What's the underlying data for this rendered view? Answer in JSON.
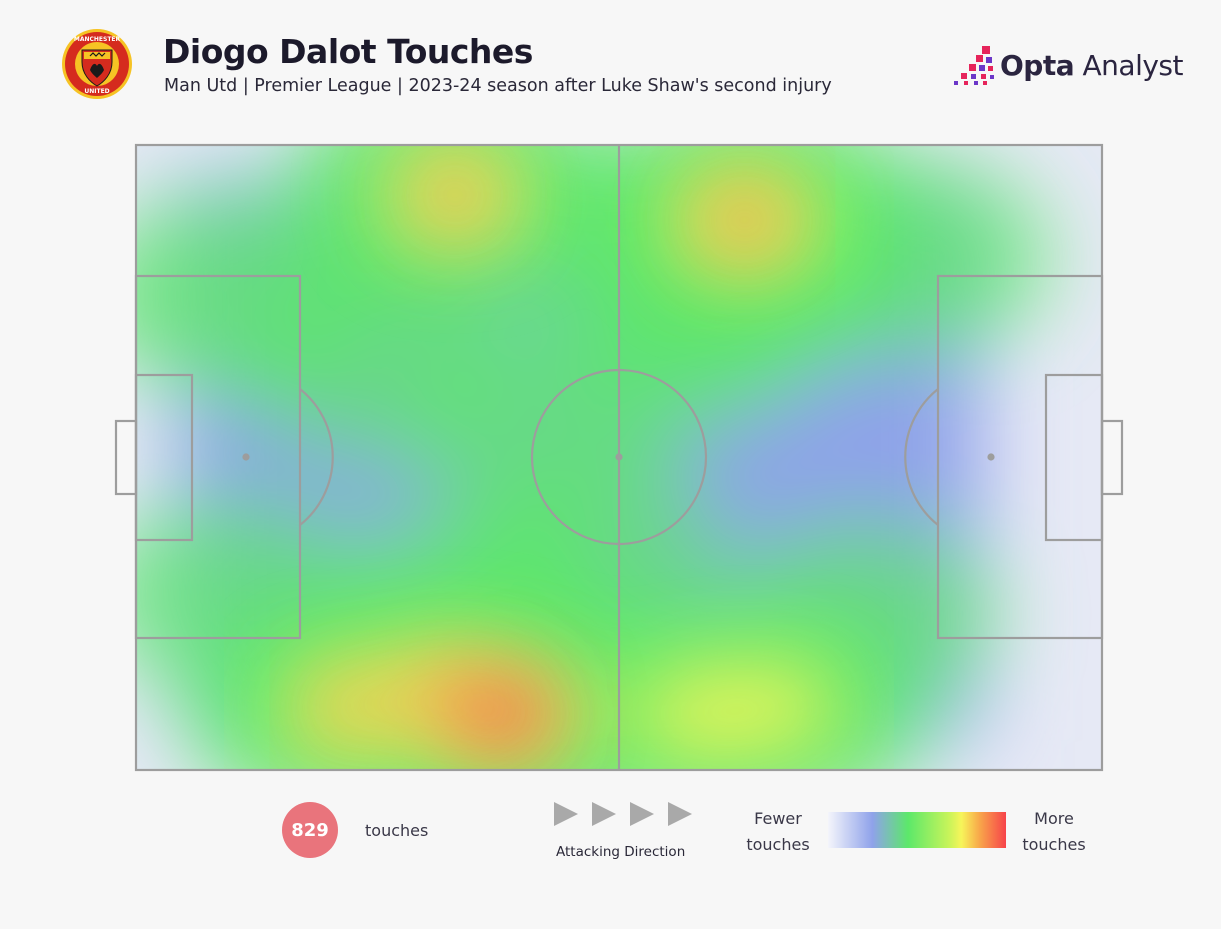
{
  "header": {
    "title": "Diogo Dalot Touches",
    "subtitle": "Man Utd | Premier League | 2023-24 season after Luke Shaw's second injury",
    "brand_bold": "Opta",
    "brand_light": " Analyst",
    "crest_icon": "manchester-united-crest-icon",
    "crest_colors": {
      "red": "#d52b1e",
      "gold": "#f6c324"
    }
  },
  "footer": {
    "touch_count": "829",
    "touch_label": "touches",
    "direction_label": "Attacking Direction",
    "legend_min": "Fewer touches",
    "legend_max": "More touches"
  },
  "chart_data": {
    "type": "heatmap",
    "title": "Diogo Dalot Touches",
    "total_touches": 829,
    "pitch": {
      "length": 100,
      "width": 100,
      "attacking_direction": "left-to-right"
    },
    "x_range": [
      0,
      100
    ],
    "y_range": [
      0,
      100
    ],
    "colorscale": [
      "#e4e8f7",
      "#8fa2ea",
      "#5ce86a",
      "#f7f55a",
      "#f8a84a",
      "#f7434a"
    ],
    "hotspots": [
      {
        "x": 33,
        "y": 92,
        "intensity": 0.78
      },
      {
        "x": 63,
        "y": 88,
        "intensity": 0.85
      },
      {
        "x": 63,
        "y": 78,
        "intensity": 0.5
      },
      {
        "x": 38,
        "y": 9,
        "intensity": 0.98
      },
      {
        "x": 32,
        "y": 12,
        "intensity": 0.8
      },
      {
        "x": 22,
        "y": 10,
        "intensity": 0.72
      },
      {
        "x": 58,
        "y": 9,
        "intensity": 0.66
      },
      {
        "x": 66,
        "y": 10,
        "intensity": 0.66
      },
      {
        "x": 10,
        "y": 76,
        "intensity": 0.45
      },
      {
        "x": 10,
        "y": 28,
        "intensity": 0.38
      },
      {
        "x": 25,
        "y": 65,
        "intensity": 0.35
      },
      {
        "x": 42,
        "y": 55,
        "intensity": 0.32
      },
      {
        "x": 35,
        "y": 25,
        "intensity": 0.5
      },
      {
        "x": 80,
        "y": 82,
        "intensity": 0.38
      },
      {
        "x": 56,
        "y": 70,
        "intensity": 0.38
      },
      {
        "x": 47,
        "y": 35,
        "intensity": 0.3
      },
      {
        "x": 75,
        "y": 25,
        "intensity": 0.3
      }
    ]
  }
}
